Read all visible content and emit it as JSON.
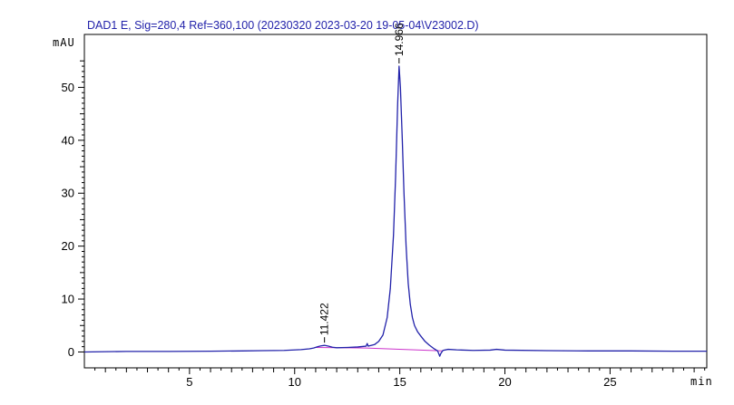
{
  "chart_data": {
    "type": "line",
    "title": "DAD1 E, Sig=280,4 Ref=360,100 (20230320 2023-03-20 19-05-04\\V23002.D)",
    "xlabel": "min",
    "ylabel": "mAU",
    "xlim": [
      0,
      29.6
    ],
    "ylim": [
      -3,
      60
    ],
    "x_ticks": [
      5,
      10,
      15,
      20,
      25
    ],
    "y_ticks": [
      0,
      10,
      20,
      30,
      40,
      50
    ],
    "grid": false,
    "legend": "none",
    "series": [
      {
        "color": "#2222aa",
        "x": [
          0,
          2,
          4,
          6,
          7.5,
          8.5,
          9.5,
          10.3,
          10.7,
          10.9,
          11.1,
          11.25,
          11.42,
          11.6,
          11.8,
          12.0,
          12.5,
          13.0,
          13.4,
          13.45,
          13.5,
          13.8,
          14.0,
          14.2,
          14.4,
          14.55,
          14.7,
          14.8,
          14.9,
          14.966,
          15.03,
          15.12,
          15.2,
          15.3,
          15.4,
          15.5,
          15.6,
          15.7,
          15.85,
          16.0,
          16.2,
          16.4,
          16.6,
          16.8,
          16.9,
          16.95,
          17.05,
          17.3,
          17.7,
          18.5,
          19.3,
          19.6,
          20,
          22,
          24,
          26,
          28,
          29.6
        ],
        "y": [
          0.0,
          0.1,
          0.1,
          0.15,
          0.2,
          0.25,
          0.3,
          0.45,
          0.6,
          0.75,
          1.0,
          1.15,
          1.25,
          1.1,
          0.9,
          0.8,
          0.85,
          0.95,
          1.1,
          1.6,
          1.1,
          1.4,
          2.0,
          3.2,
          6.5,
          12.0,
          22.0,
          33.0,
          47.0,
          54.0,
          50.0,
          40.0,
          30.0,
          20.0,
          13.0,
          9.0,
          6.5,
          5.0,
          3.8,
          3.0,
          2.0,
          1.3,
          0.7,
          0.2,
          -0.8,
          -0.3,
          0.3,
          0.5,
          0.4,
          0.3,
          0.35,
          0.5,
          0.35,
          0.25,
          0.2,
          0.2,
          0.15,
          0.15
        ]
      },
      {
        "color": "#cc33cc",
        "x": [
          11.0,
          13.4,
          17.0
        ],
        "y": [
          0.85,
          0.75,
          0.2
        ]
      }
    ],
    "peak_labels": [
      {
        "x": 11.42,
        "y": 1.25,
        "text": "11.422"
      },
      {
        "x": 14.966,
        "y": 54.0,
        "text": "14.966"
      }
    ],
    "colors": {
      "title": "#2222aa",
      "trace": "#2222aa",
      "baseline": "#cc33cc",
      "frame": "#000000"
    }
  }
}
